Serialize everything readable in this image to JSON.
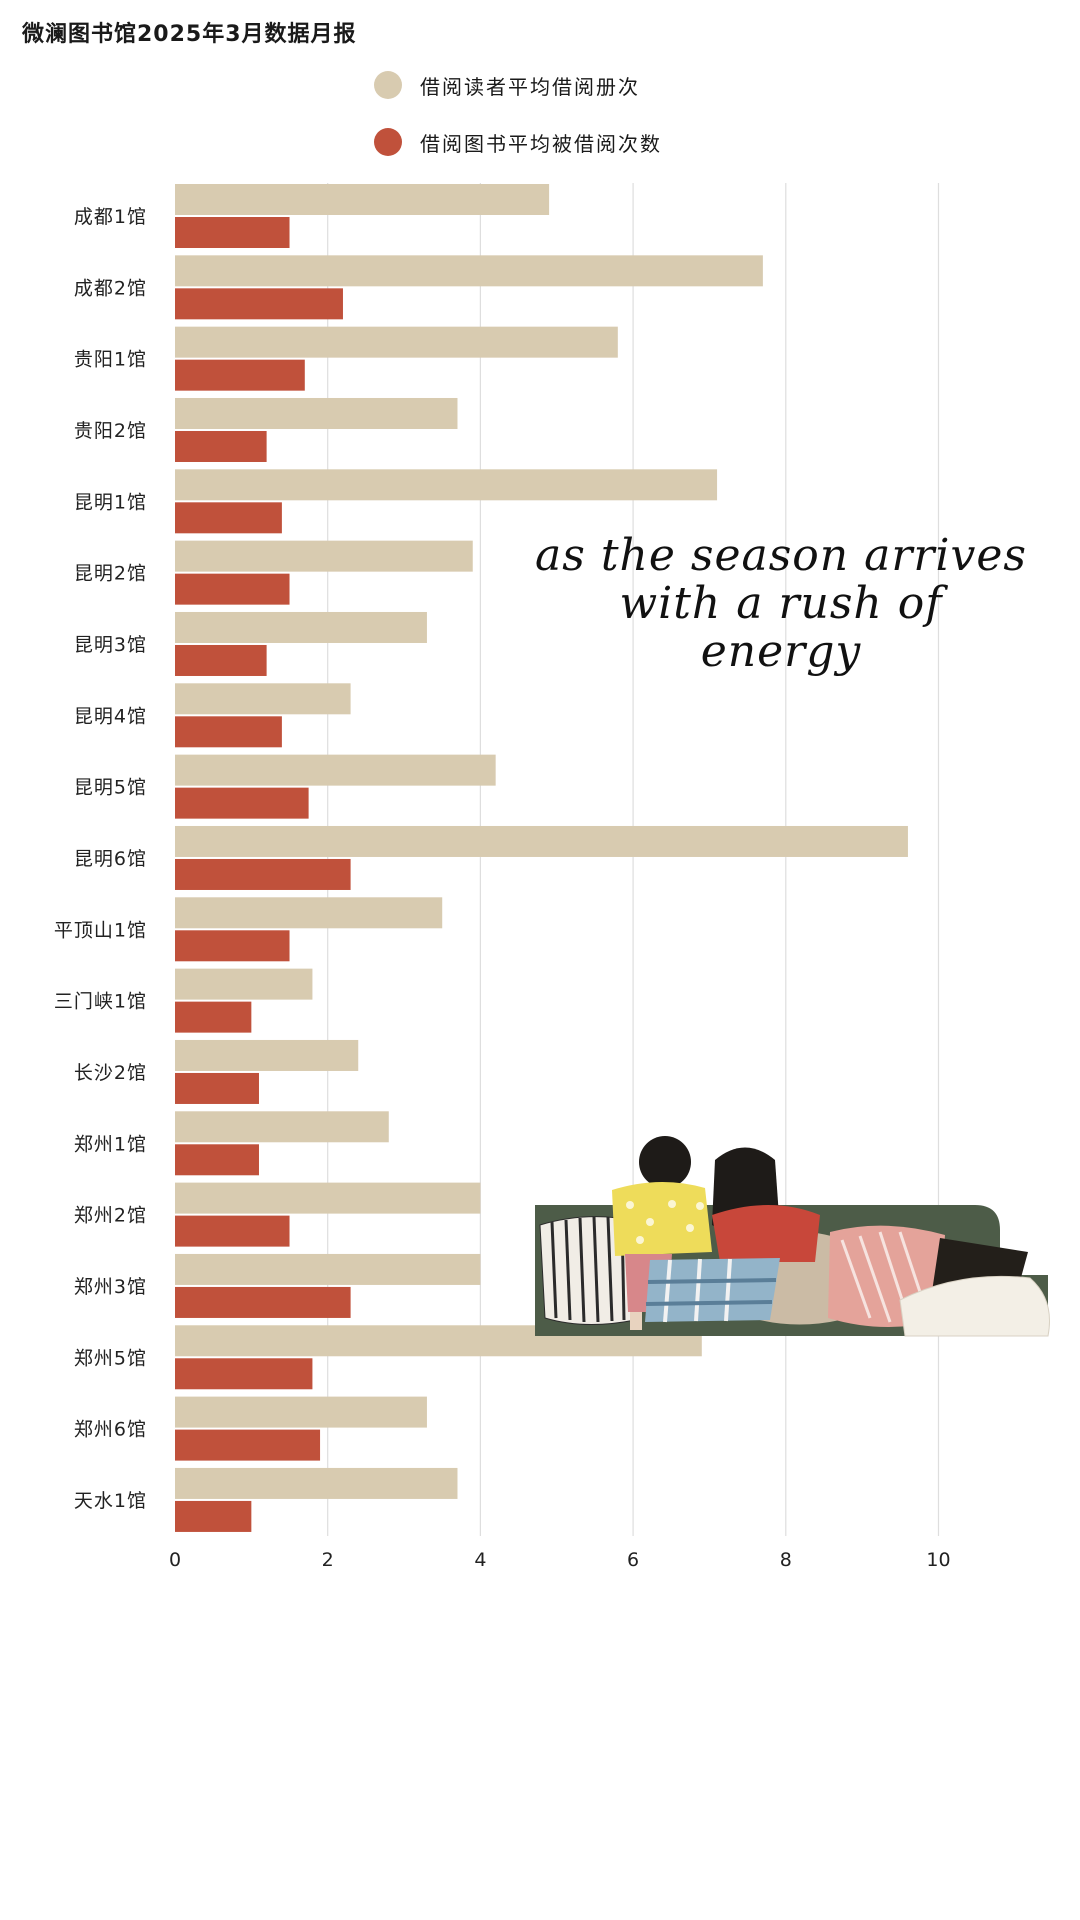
{
  "chart_data": {
    "type": "bar",
    "orientation": "horizontal",
    "title": "微澜图书馆2025年3月数据月报",
    "categories": [
      "成都1馆",
      "成都2馆",
      "贵阳1馆",
      "贵阳2馆",
      "昆明1馆",
      "昆明2馆",
      "昆明3馆",
      "昆明4馆",
      "昆明5馆",
      "昆明6馆",
      "平顶山1馆",
      "三门峡1馆",
      "长沙2馆",
      "郑州1馆",
      "郑州2馆",
      "郑州3馆",
      "郑州5馆",
      "郑州6馆",
      "天水1馆"
    ],
    "series": [
      {
        "name": "借阅读者平均借阅册次",
        "color": "#d8cbb0",
        "values": [
          4.9,
          7.7,
          5.8,
          3.7,
          7.1,
          3.9,
          3.3,
          2.3,
          4.2,
          9.6,
          3.5,
          1.8,
          2.4,
          2.8,
          4.0,
          4.0,
          6.9,
          3.3,
          3.7
        ]
      },
      {
        "name": "借阅图书平均被借阅次数",
        "color": "#c0513b",
        "values": [
          1.5,
          2.2,
          1.7,
          1.2,
          1.4,
          1.5,
          1.2,
          1.4,
          1.75,
          2.3,
          1.5,
          1.0,
          1.1,
          1.1,
          1.5,
          2.3,
          1.8,
          1.9,
          1.0
        ]
      }
    ],
    "xlim": [
      0,
      11.5
    ],
    "xticks": [
      0,
      2,
      4,
      6,
      8,
      10
    ],
    "grid": "vertical",
    "legend_position": "top"
  },
  "annotation": {
    "lines": [
      "as the season arrives",
      "with a rush of",
      "energy"
    ]
  },
  "colors": {
    "grid": "#dedede",
    "sofa": "#4d5c48"
  },
  "icons": {
    "legend_marker": "filled-circle"
  }
}
